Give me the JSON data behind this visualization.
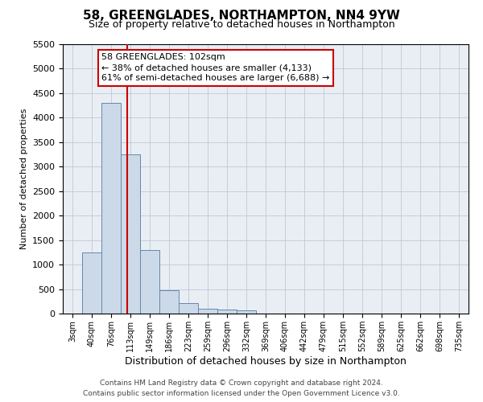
{
  "title": "58, GREENGLADES, NORTHAMPTON, NN4 9YW",
  "subtitle": "Size of property relative to detached houses in Northampton",
  "xlabel": "Distribution of detached houses by size in Northampton",
  "ylabel": "Number of detached properties",
  "footer_line1": "Contains HM Land Registry data © Crown copyright and database right 2024.",
  "footer_line2": "Contains public sector information licensed under the Open Government Licence v3.0.",
  "annotation_line1": "58 GREENGLADES: 102sqm",
  "annotation_line2": "← 38% of detached houses are smaller (4,133)",
  "annotation_line3": "61% of semi-detached houses are larger (6,688) →",
  "bar_color": "#ccd9e8",
  "bar_edge_color": "#6688aa",
  "vline_color": "#cc0000",
  "vline_x_idx": 2.85,
  "annotation_box_edgecolor": "#cc0000",
  "bg_axes": "#e8eef4",
  "bg_fig": "#ffffff",
  "grid_color": "#c0c8d8",
  "categories": [
    "3sqm",
    "40sqm",
    "76sqm",
    "113sqm",
    "149sqm",
    "186sqm",
    "223sqm",
    "259sqm",
    "296sqm",
    "332sqm",
    "369sqm",
    "406sqm",
    "442sqm",
    "479sqm",
    "515sqm",
    "552sqm",
    "589sqm",
    "625sqm",
    "662sqm",
    "698sqm",
    "735sqm"
  ],
  "values": [
    0,
    1250,
    4300,
    3250,
    1300,
    480,
    220,
    100,
    80,
    60,
    0,
    0,
    0,
    0,
    0,
    0,
    0,
    0,
    0,
    0,
    0
  ],
  "ylim": [
    0,
    5500
  ],
  "yticks": [
    0,
    500,
    1000,
    1500,
    2000,
    2500,
    3000,
    3500,
    4000,
    4500,
    5000,
    5500
  ],
  "title_fontsize": 11,
  "subtitle_fontsize": 9,
  "ylabel_fontsize": 8,
  "xlabel_fontsize": 9,
  "tick_fontsize": 8,
  "xtick_fontsize": 7,
  "annotation_fontsize": 8,
  "footer_fontsize": 6.5
}
